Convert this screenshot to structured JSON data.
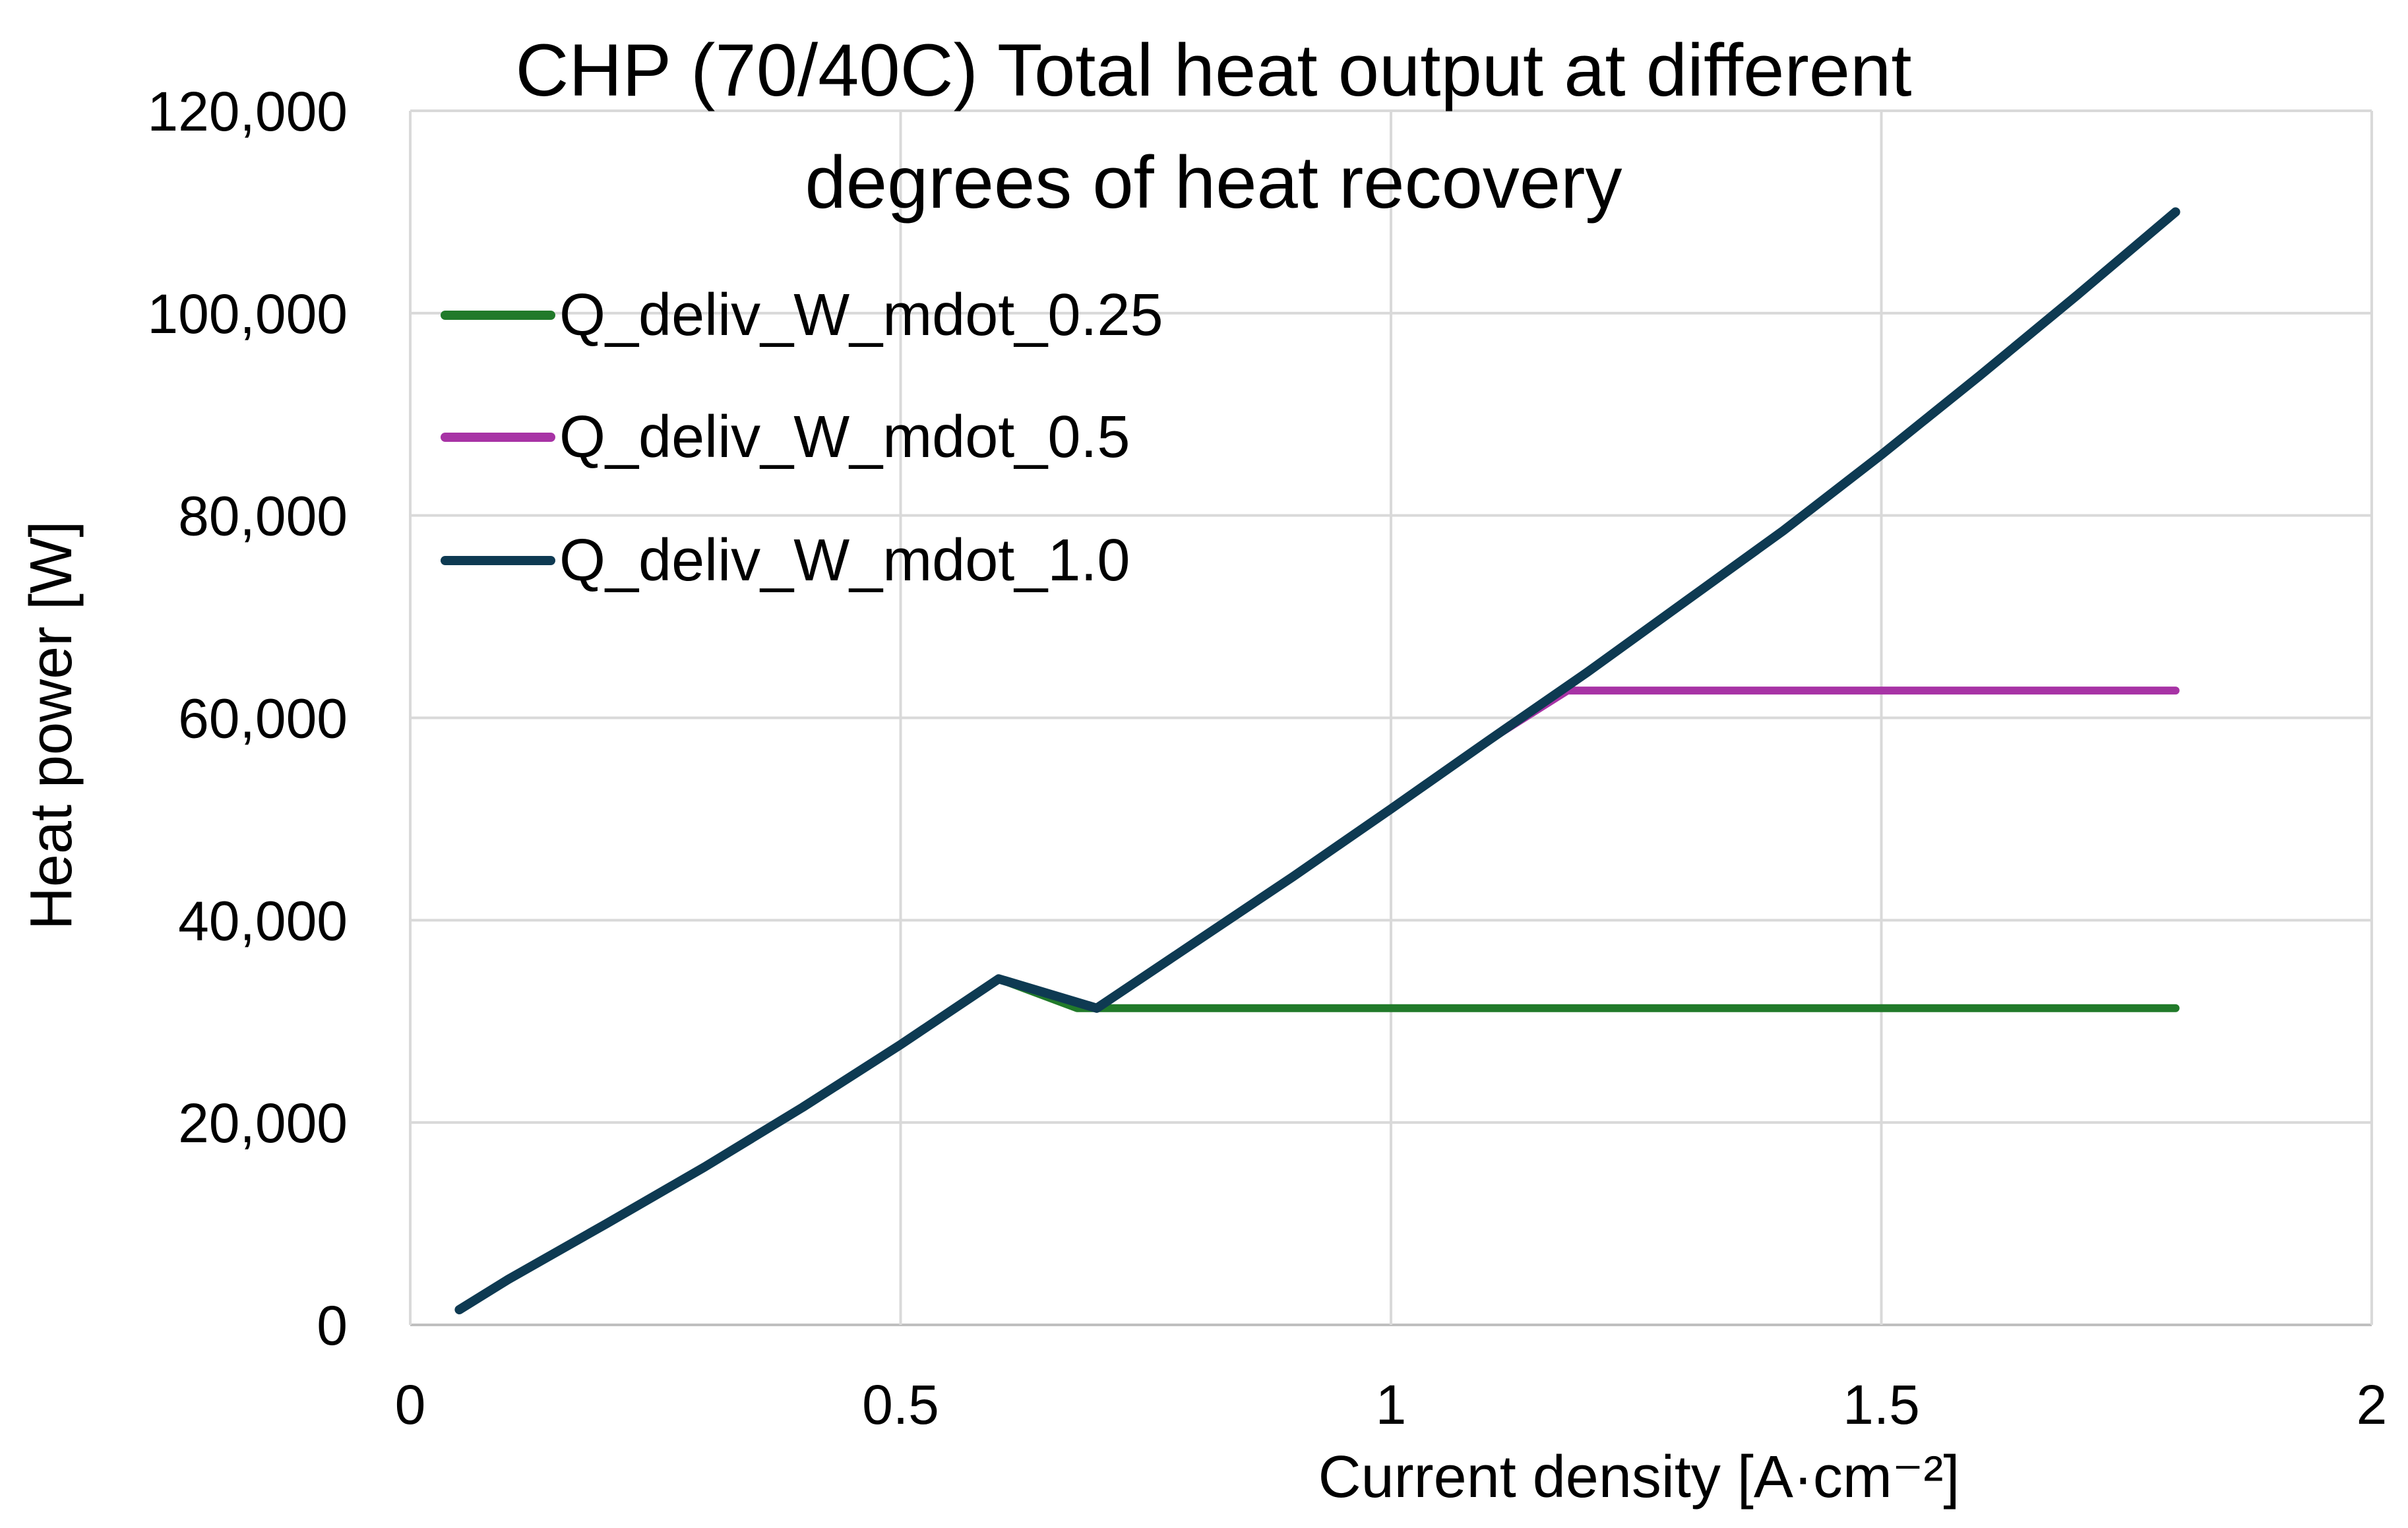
{
  "chart_data": {
    "type": "line",
    "title_lines": [
      "CHP (70/40C) Total heat output at different",
      "degrees of heat recovery"
    ],
    "xlabel": "Current density [A·cm⁻²]",
    "ylabel": "Heat power [W]",
    "xlim": [
      0,
      2
    ],
    "ylim": [
      0,
      120000
    ],
    "xticks": [
      0,
      0.5,
      1,
      1.5,
      2
    ],
    "xtick_labels": [
      "0",
      "0.5",
      "1",
      "1.5",
      "2"
    ],
    "yticks": [
      0,
      20000,
      40000,
      60000,
      80000,
      100000,
      120000
    ],
    "ytick_labels": [
      "0",
      "20,000",
      "40,000",
      "60,000",
      "80,000",
      "100,000",
      "120,000"
    ],
    "grid": true,
    "legend_position": "top-left",
    "series": [
      {
        "name": "Q_deliv_W_mdot_0.25",
        "color": "#217a2a",
        "x": [
          0.05,
          0.1,
          0.2,
          0.3,
          0.4,
          0.5,
          0.6,
          0.68,
          0.7,
          0.8,
          0.9,
          1.0,
          1.1,
          1.2,
          1.3,
          1.4,
          1.5,
          1.6,
          1.7,
          1.8
        ],
        "y": [
          1500,
          4500,
          10000,
          15600,
          21500,
          27700,
          34200,
          31300,
          31300,
          31300,
          31300,
          31300,
          31300,
          31300,
          31300,
          31300,
          31300,
          31300,
          31300,
          31300
        ]
      },
      {
        "name": "Q_deliv_W_mdot_0.5",
        "color": "#a733a5",
        "x": [
          0.05,
          0.1,
          0.2,
          0.3,
          0.4,
          0.5,
          0.6,
          0.7,
          0.8,
          0.9,
          1.0,
          1.1,
          1.18,
          1.2,
          1.3,
          1.4,
          1.5,
          1.6,
          1.7,
          1.8
        ],
        "y": [
          1500,
          4500,
          10000,
          15600,
          21500,
          27700,
          34200,
          31300,
          37800,
          44300,
          51000,
          57800,
          62700,
          62700,
          62700,
          62700,
          62700,
          62700,
          62700,
          62700
        ]
      },
      {
        "name": "Q_deliv_W_mdot_1.0",
        "color": "#0e3a52",
        "x": [
          0.05,
          0.1,
          0.2,
          0.3,
          0.4,
          0.5,
          0.6,
          0.7,
          0.8,
          0.9,
          1.0,
          1.1,
          1.2,
          1.3,
          1.4,
          1.5,
          1.6,
          1.7,
          1.8
        ],
        "y": [
          1500,
          4500,
          10000,
          15600,
          21500,
          27700,
          34200,
          31300,
          37800,
          44300,
          51000,
          57800,
          64500,
          71500,
          78500,
          86000,
          93800,
          101800,
          110000
        ]
      }
    ]
  }
}
